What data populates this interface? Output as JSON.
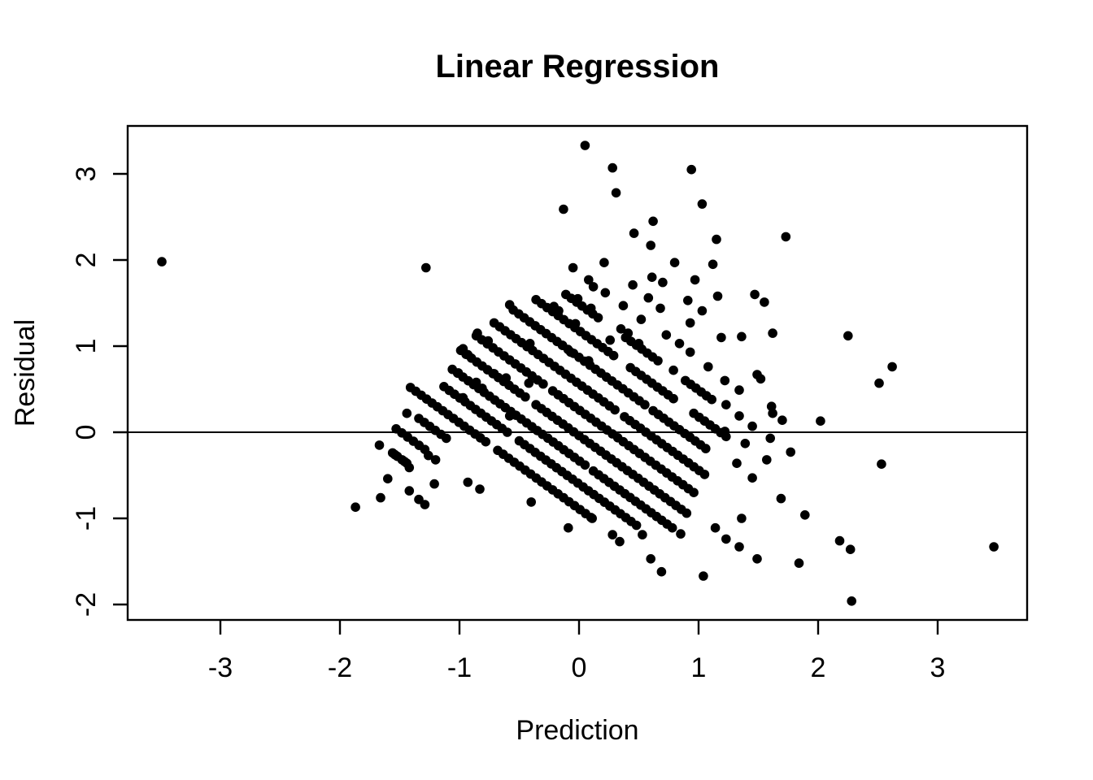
{
  "chart_data": {
    "type": "scatter",
    "title": "Linear Regression",
    "xlabel": "Prediction",
    "ylabel": "Residual",
    "x_ticks": [
      -3,
      -2,
      -1,
      0,
      1,
      2,
      3
    ],
    "y_ticks": [
      -2,
      -1,
      0,
      1,
      2,
      3
    ],
    "xlim": [
      -3.78,
      3.75
    ],
    "ylim": [
      -2.18,
      3.56
    ],
    "grid": false,
    "legend": null,
    "background_color": "#ffffff",
    "point_color": "#000000",
    "marker": {
      "shape": "filled-circle",
      "radius_px": 5.8
    },
    "reference_line": {
      "y": 0,
      "color": "#000000"
    },
    "runs_note": "diagonal_runs are dense sequences of overlapping points along residual = c - prediction, spaced by step in prediction units",
    "run_step": 0.045,
    "diagonal_runs": [
      {
        "c": -1.8,
        "x_from": -1.56,
        "x_to": -1.44
      },
      {
        "c": -1.49,
        "x_from": -1.53,
        "x_to": -1.29
      },
      {
        "c": -1.18,
        "x_from": -1.34,
        "x_to": -1.11
      },
      {
        "c": -0.89,
        "x_from": -1.41,
        "x_to": -0.78
      },
      {
        "c": -0.89,
        "x_from": -0.68,
        "x_to": 0.1
      },
      {
        "c": -0.6,
        "x_from": -1.13,
        "x_to": -0.6
      },
      {
        "c": -0.6,
        "x_from": -0.5,
        "x_to": 0.48
      },
      {
        "c": -0.33,
        "x_from": -1.06,
        "x_to": 0.05
      },
      {
        "c": -0.33,
        "x_from": 0.12,
        "x_to": 0.78
      },
      {
        "c": -0.04,
        "x_from": -0.99,
        "x_to": -0.45
      },
      {
        "c": -0.04,
        "x_from": -0.36,
        "x_to": 0.9
      },
      {
        "c": 0.26,
        "x_from": -0.86,
        "x_to": -0.3
      },
      {
        "c": 0.26,
        "x_from": -0.22,
        "x_to": 0.96
      },
      {
        "c": 0.56,
        "x_from": -0.71,
        "x_to": 0.3
      },
      {
        "c": 0.56,
        "x_from": 0.38,
        "x_to": 1.05
      },
      {
        "c": 0.87,
        "x_from": -0.55,
        "x_to": 0.55
      },
      {
        "c": 0.87,
        "x_from": 0.62,
        "x_to": 1.06
      },
      {
        "c": 1.18,
        "x_from": -0.36,
        "x_to": 0.29
      },
      {
        "c": 1.18,
        "x_from": 0.43,
        "x_to": 0.79
      },
      {
        "c": 1.18,
        "x_from": 0.96,
        "x_to": 1.23
      },
      {
        "c": 1.49,
        "x_from": -0.11,
        "x_to": 0.16
      },
      {
        "c": 1.49,
        "x_from": 0.39,
        "x_to": 0.66
      },
      {
        "c": 1.49,
        "x_from": 0.89,
        "x_to": 1.11
      }
    ],
    "points": [
      [
        -3.49,
        1.98
      ],
      [
        0.05,
        3.33
      ],
      [
        0.28,
        3.07
      ],
      [
        0.94,
        3.05
      ],
      [
        0.31,
        2.78
      ],
      [
        1.03,
        2.65
      ],
      [
        -0.13,
        2.59
      ],
      [
        0.62,
        2.45
      ],
      [
        0.46,
        2.31
      ],
      [
        0.6,
        2.17
      ],
      [
        1.15,
        2.24
      ],
      [
        1.73,
        2.27
      ],
      [
        0.21,
        1.97
      ],
      [
        0.8,
        1.97
      ],
      [
        -0.05,
        1.91
      ],
      [
        1.12,
        1.95
      ],
      [
        -1.28,
        1.91
      ],
      [
        0.08,
        1.77
      ],
      [
        0.12,
        1.69
      ],
      [
        0.22,
        1.62
      ],
      [
        0.45,
        1.71
      ],
      [
        0.61,
        1.8
      ],
      [
        0.7,
        1.74
      ],
      [
        0.97,
        1.77
      ],
      [
        1.47,
        1.6
      ],
      [
        1.55,
        1.51
      ],
      [
        -0.01,
        1.55
      ],
      [
        0.58,
        1.56
      ],
      [
        1.16,
        1.58
      ],
      [
        0.1,
        1.44
      ],
      [
        0.37,
        1.47
      ],
      [
        0.68,
        1.44
      ],
      [
        0.91,
        1.53
      ],
      [
        1.03,
        1.41
      ],
      [
        0.52,
        1.31
      ],
      [
        -0.03,
        1.26
      ],
      [
        0.35,
        1.2
      ],
      [
        0.41,
        1.15
      ],
      [
        0.26,
        1.07
      ],
      [
        0.73,
        1.13
      ],
      [
        0.84,
        1.03
      ],
      [
        0.5,
        1.03
      ],
      [
        0.93,
        1.27
      ],
      [
        1.19,
        1.1
      ],
      [
        1.36,
        1.11
      ],
      [
        1.62,
        1.15
      ],
      [
        2.25,
        1.12
      ],
      [
        -0.58,
        1.48
      ],
      [
        -0.21,
        1.46
      ],
      [
        -0.17,
        1.41
      ],
      [
        -0.85,
        1.15
      ],
      [
        -0.76,
        1.06
      ],
      [
        -0.97,
        0.97
      ],
      [
        -0.93,
        0.9
      ],
      [
        -0.71,
        0.68
      ],
      [
        -0.41,
        1.03
      ],
      [
        -0.14,
        1.01
      ],
      [
        -0.07,
        0.93
      ],
      [
        0.08,
        0.83
      ],
      [
        0.93,
        0.93
      ],
      [
        1.08,
        0.76
      ],
      [
        0.79,
        0.72
      ],
      [
        1.49,
        0.67
      ],
      [
        1.52,
        0.62
      ],
      [
        1.22,
        0.6
      ],
      [
        1.34,
        0.49
      ],
      [
        2.62,
        0.76
      ],
      [
        2.51,
        0.57
      ],
      [
        1.23,
        0.32
      ],
      [
        1.61,
        0.3
      ],
      [
        1.62,
        0.22
      ],
      [
        1.7,
        0.14
      ],
      [
        2.02,
        0.13
      ],
      [
        1.45,
        0.07
      ],
      [
        1.34,
        0.19
      ],
      [
        1.22,
        0.01
      ],
      [
        -1.01,
        0.69
      ],
      [
        -0.86,
        0.58
      ],
      [
        -0.81,
        0.51
      ],
      [
        -0.61,
        0.63
      ],
      [
        -0.42,
        0.57
      ],
      [
        -0.97,
        0.4
      ],
      [
        -1.44,
        0.22
      ],
      [
        -0.58,
        0.19
      ],
      [
        -1.67,
        -0.15
      ],
      [
        -1.54,
        -0.26
      ],
      [
        -1.46,
        -0.34
      ],
      [
        -1.26,
        -0.27
      ],
      [
        -1.2,
        -0.32
      ],
      [
        -1.42,
        -0.41
      ],
      [
        -1.6,
        -0.54
      ],
      [
        -1.42,
        -0.68
      ],
      [
        -1.66,
        -0.76
      ],
      [
        -1.34,
        -0.78
      ],
      [
        -1.29,
        -0.84
      ],
      [
        -1.21,
        -0.6
      ],
      [
        -1.87,
        -0.87
      ],
      [
        -0.93,
        -0.58
      ],
      [
        -0.83,
        -0.66
      ],
      [
        -0.4,
        -0.81
      ],
      [
        -0.09,
        -1.11
      ],
      [
        0.11,
        -1.0
      ],
      [
        0.28,
        -1.19
      ],
      [
        0.34,
        -1.27
      ],
      [
        0.53,
        -1.19
      ],
      [
        0.85,
        -1.18
      ],
      [
        0.6,
        -1.47
      ],
      [
        0.69,
        -1.62
      ],
      [
        1.04,
        -1.67
      ],
      [
        1.23,
        -1.24
      ],
      [
        1.34,
        -1.33
      ],
      [
        1.49,
        -1.47
      ],
      [
        1.84,
        -1.52
      ],
      [
        1.89,
        -0.96
      ],
      [
        1.69,
        -0.77
      ],
      [
        1.36,
        -1.0
      ],
      [
        1.14,
        -1.11
      ],
      [
        1.39,
        -0.13
      ],
      [
        1.6,
        -0.07
      ],
      [
        1.57,
        -0.32
      ],
      [
        1.77,
        -0.23
      ],
      [
        1.45,
        -0.53
      ],
      [
        1.32,
        -0.36
      ],
      [
        2.53,
        -0.37
      ],
      [
        2.18,
        -1.26
      ],
      [
        2.27,
        -1.36
      ],
      [
        2.28,
        -1.96
      ],
      [
        3.47,
        -1.33
      ]
    ]
  }
}
